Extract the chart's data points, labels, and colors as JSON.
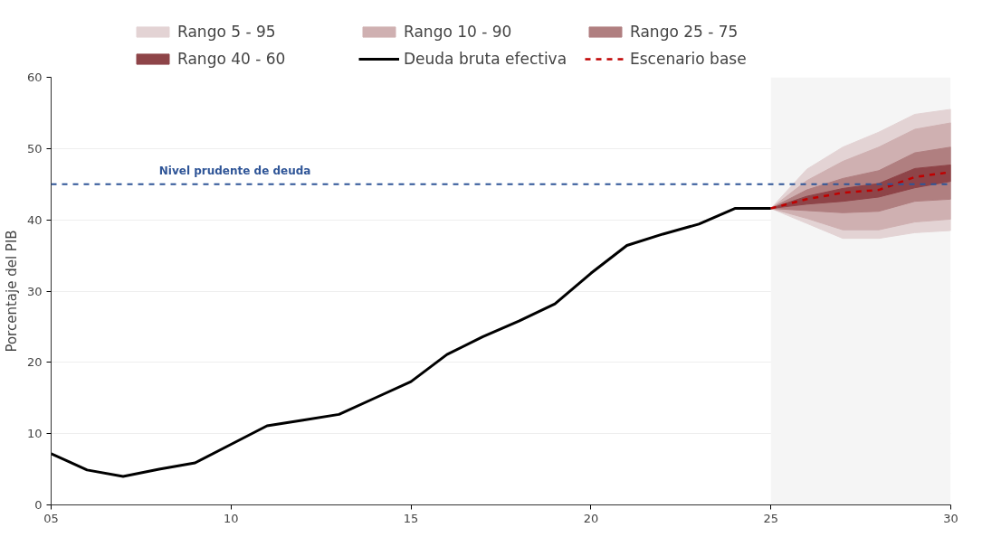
{
  "chart_data": {
    "type": "line",
    "ylabel": "Porcentaje del PIB",
    "xlim": [
      2005,
      2030
    ],
    "xticks": [
      {
        "value": 2005,
        "label": "05"
      },
      {
        "value": 2010,
        "label": "10"
      },
      {
        "value": 2015,
        "label": "15"
      },
      {
        "value": 2020,
        "label": "20"
      },
      {
        "value": 2025,
        "label": "25"
      },
      {
        "value": 2030,
        "label": "30"
      }
    ],
    "ylim": [
      0,
      60
    ],
    "yticks": [
      0,
      10,
      20,
      30,
      40,
      50,
      60
    ],
    "grid": "y",
    "legend": "top",
    "series": [
      {
        "name": "Rango 5 - 95",
        "type": "area",
        "color": "#e3d3d4",
        "x": [
          2025,
          2026,
          2027,
          2028,
          2029,
          2030
        ],
        "values": [
          null,
          null,
          null,
          null,
          null,
          null
        ],
        "lower": [
          41.6,
          39.5,
          37.4,
          37.4,
          38.2,
          38.5
        ],
        "upper": [
          41.6,
          47.1,
          50.2,
          52.3,
          54.8,
          55.5
        ]
      },
      {
        "name": "Rango 10 - 90",
        "type": "area",
        "color": "#cfb0b1",
        "x": [
          2025,
          2026,
          2027,
          2028,
          2029,
          2030
        ],
        "values": [
          null,
          null,
          null,
          null,
          null,
          null
        ],
        "lower": [
          41.6,
          40.2,
          38.6,
          38.6,
          39.7,
          40.1
        ],
        "upper": [
          41.6,
          45.5,
          48.2,
          50.2,
          52.7,
          53.6
        ]
      },
      {
        "name": "Rango 25 - 75",
        "type": "area",
        "color": "#b07f80",
        "x": [
          2025,
          2026,
          2027,
          2028,
          2029,
          2030
        ],
        "values": [
          null,
          null,
          null,
          null,
          null,
          null
        ],
        "lower": [
          41.6,
          41.3,
          41.0,
          41.2,
          42.6,
          42.9
        ],
        "upper": [
          41.6,
          44.2,
          45.8,
          46.9,
          49.4,
          50.2
        ]
      },
      {
        "name": "Rango 40 - 60",
        "type": "area",
        "color": "#8e4448",
        "x": [
          2025,
          2026,
          2027,
          2028,
          2029,
          2030
        ],
        "values": [
          null,
          null,
          null,
          null,
          null,
          null
        ],
        "lower": [
          41.6,
          42.2,
          42.6,
          43.2,
          44.5,
          45.4
        ],
        "upper": [
          41.6,
          43.3,
          44.4,
          45.1,
          47.2,
          47.7
        ]
      },
      {
        "name": "Deuda bruta efectiva",
        "type": "line",
        "color": "#000000",
        "line_style": "solid",
        "x": [
          2005,
          2006,
          2007,
          2008,
          2009,
          2010,
          2011,
          2012,
          2013,
          2014,
          2015,
          2016,
          2017,
          2018,
          2019,
          2020,
          2021,
          2022,
          2023,
          2024,
          2025
        ],
        "values": [
          7.2,
          4.9,
          4.0,
          5.0,
          5.9,
          8.5,
          11.1,
          11.9,
          12.7,
          15.0,
          17.3,
          21.1,
          23.6,
          25.8,
          28.2,
          32.5,
          36.4,
          38.0,
          39.4,
          41.6,
          41.6
        ]
      },
      {
        "name": "Escenario base",
        "type": "line",
        "color": "#c00000",
        "line_style": "dashed",
        "x": [
          2025,
          2026,
          2027,
          2028,
          2029,
          2030
        ],
        "values": [
          41.6,
          42.9,
          43.8,
          44.2,
          46.0,
          46.7
        ]
      }
    ],
    "ref_lines": [
      {
        "axis": "y",
        "value": 45,
        "label": "Nivel prudente de deuda",
        "color": "#2f5597",
        "line_style": "dashed"
      }
    ],
    "bands": [
      {
        "axis": "x",
        "from": 2025,
        "to": 2030,
        "color": "#f5f5f5"
      }
    ]
  }
}
